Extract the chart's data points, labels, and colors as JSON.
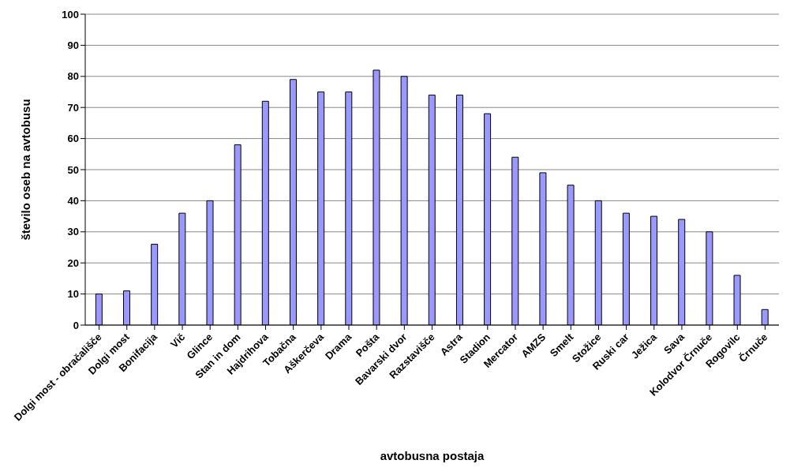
{
  "chart_data": {
    "type": "bar",
    "xlabel": "avtobusna postaja",
    "ylabel": "število oseb na avtobusu",
    "categories": [
      "Dolgi most - obračališče",
      "Dolgi most",
      "Bonifacija",
      "Vič",
      "Glince",
      "Stan in dom",
      "Hajdrihova",
      "Tobačna",
      "Aškerčeva",
      "Drama",
      "Pošta",
      "Bavarski dvor",
      "Razstavišče",
      "Astra",
      "Stadion",
      "Mercator",
      "AMZS",
      "Smelt",
      "Stožice",
      "Ruski car",
      "Ježica",
      "Sava",
      "Kolodvor Črnuče",
      "Rogovilc",
      "Črnuče"
    ],
    "values": [
      10,
      11,
      26,
      36,
      40,
      58,
      72,
      79,
      75,
      75,
      82,
      80,
      74,
      74,
      68,
      54,
      49,
      45,
      40,
      36,
      35,
      34,
      30,
      16,
      5
    ],
    "color": "#9999ff",
    "ylim": [
      0,
      100
    ],
    "yticks": [
      0,
      10,
      20,
      30,
      40,
      50,
      60,
      70,
      80,
      90,
      100
    ],
    "grid": "y"
  }
}
